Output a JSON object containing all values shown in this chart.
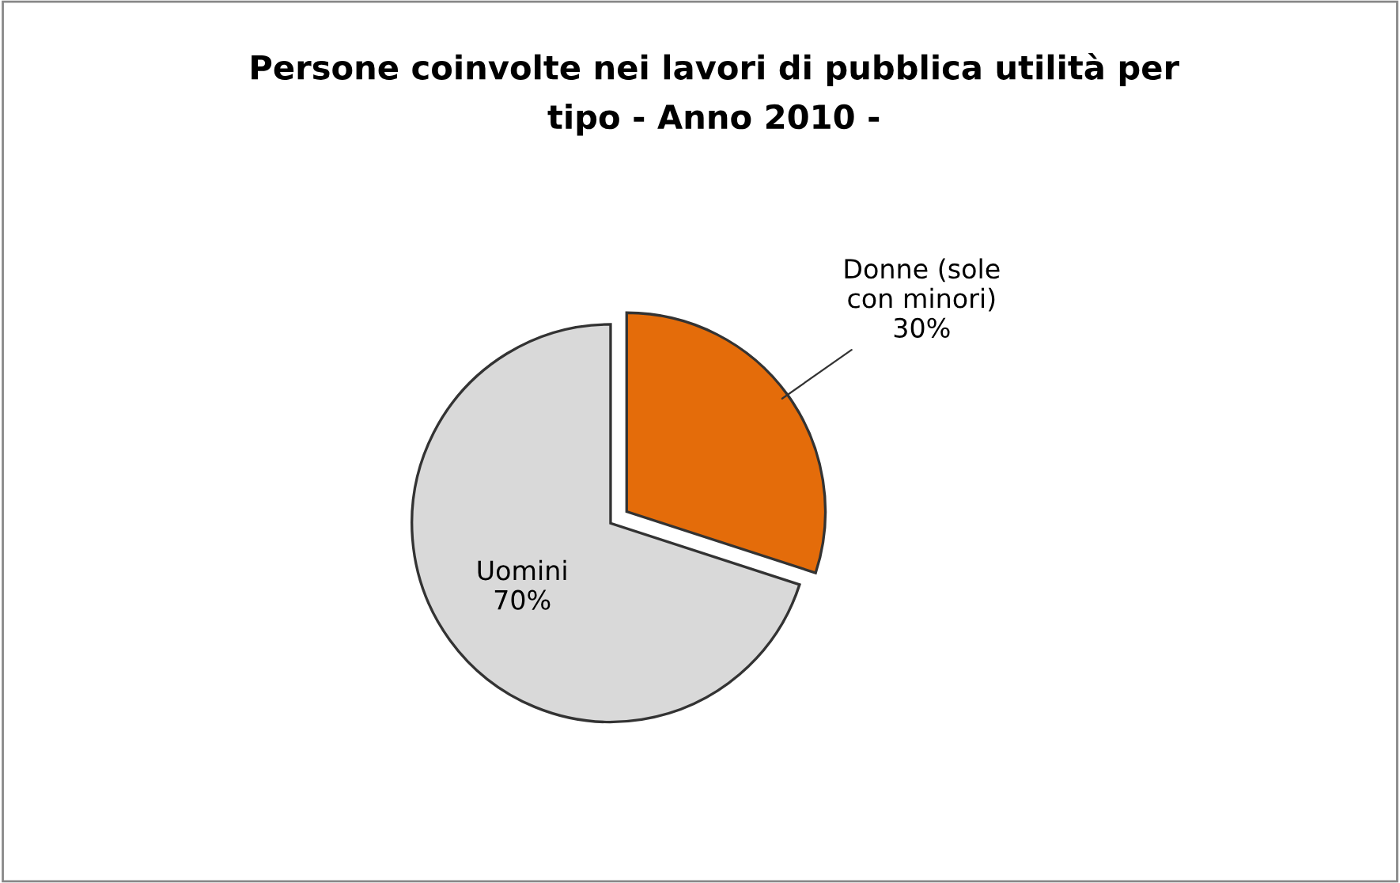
{
  "chart_data": {
    "type": "pie",
    "title": "Persone coinvolte nei lavori di pubblica utilità per\ntipo - Anno 2010 -",
    "categories": [
      "Donne (sole\ncon minori)",
      "Uomini"
    ],
    "values": [
      30,
      70
    ],
    "value_labels": [
      "30%",
      "70%"
    ],
    "colors": [
      "#e46c0a",
      "#d9d9d9"
    ],
    "legend": false
  }
}
